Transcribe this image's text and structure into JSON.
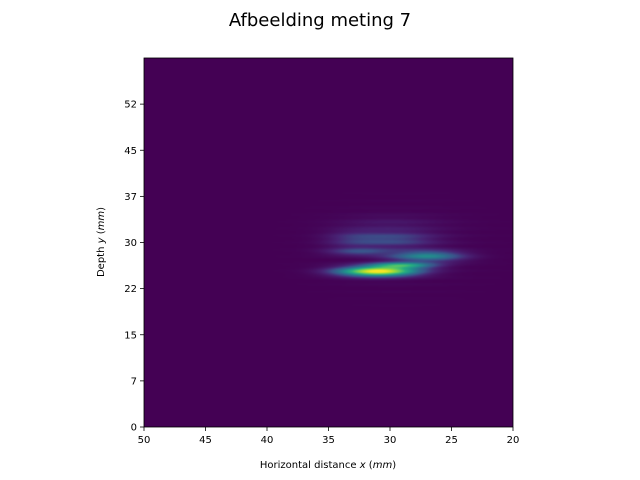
{
  "chart_data": {
    "type": "heatmap",
    "title": "Afbeelding meting 7",
    "xlabel": {
      "main": "Horizontal distance ",
      "var": "x",
      "unit_open": " (",
      "unit": "mm",
      "unit_close": ")"
    },
    "ylabel": {
      "main": "Depth ",
      "var": "y",
      "unit_open": " (",
      "unit": "mm",
      "unit_close": ")"
    },
    "xlim": [
      50,
      20
    ],
    "ylim": [
      0,
      60
    ],
    "x_ticks": [
      {
        "value": 50,
        "label": "50"
      },
      {
        "value": 45,
        "label": "45"
      },
      {
        "value": 40,
        "label": "40"
      },
      {
        "value": 35,
        "label": "35"
      },
      {
        "value": 30,
        "label": "30"
      },
      {
        "value": 25,
        "label": "25"
      },
      {
        "value": 20,
        "label": "20"
      }
    ],
    "y_ticks": [
      {
        "value": 0,
        "label": "0"
      },
      {
        "value": 7.5,
        "label": "7"
      },
      {
        "value": 15,
        "label": "15"
      },
      {
        "value": 22.5,
        "label": "22"
      },
      {
        "value": 30,
        "label": "30"
      },
      {
        "value": 37.5,
        "label": "37"
      },
      {
        "value": 45,
        "label": "45"
      },
      {
        "value": 52.5,
        "label": "52"
      }
    ],
    "colormap": "viridis",
    "background_color": "#440154",
    "hotspots": [
      {
        "x": 31,
        "y": 25.3,
        "sx": 2.2,
        "sy": 0.55,
        "intensity": 1.0
      },
      {
        "x": 29,
        "y": 26.3,
        "sx": 1.8,
        "sy": 0.35,
        "intensity": 0.55
      },
      {
        "x": 27,
        "y": 27.8,
        "sx": 2.0,
        "sy": 0.6,
        "intensity": 0.45
      },
      {
        "x": 29.5,
        "y": 30.5,
        "sx": 2.2,
        "sy": 0.9,
        "intensity": 0.2
      },
      {
        "x": 32.5,
        "y": 28.5,
        "sx": 1.8,
        "sy": 0.4,
        "intensity": 0.22
      },
      {
        "x": 33,
        "y": 30.5,
        "sx": 1.6,
        "sy": 1.0,
        "intensity": 0.14
      },
      {
        "x": 30,
        "y": 33.0,
        "sx": 3.0,
        "sy": 1.0,
        "intensity": 0.06
      }
    ]
  }
}
